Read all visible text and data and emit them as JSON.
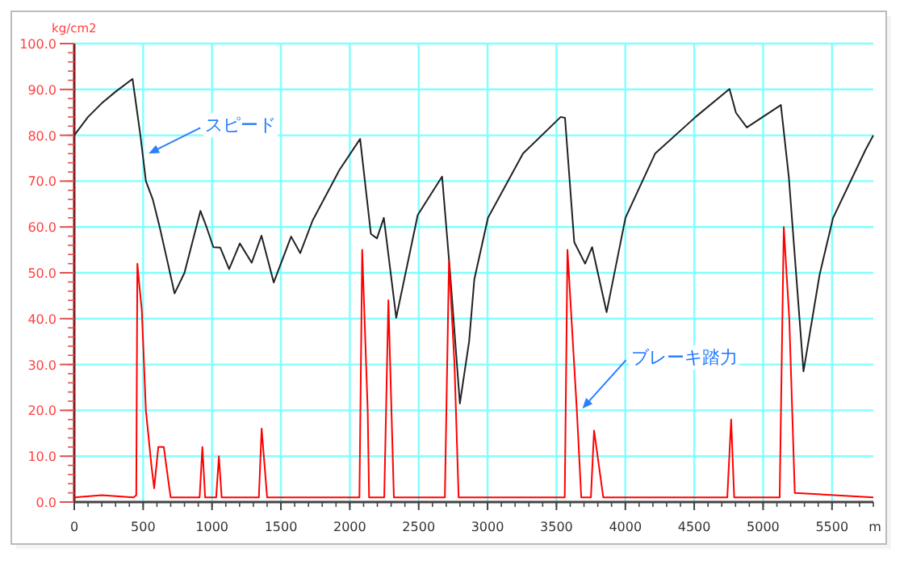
{
  "chart_data": {
    "type": "line",
    "xlabel": "m",
    "ylabel": "kg/cm2",
    "xlim": [
      0,
      5800
    ],
    "ylim": [
      0,
      100
    ],
    "xticks": [
      0,
      500,
      1000,
      1500,
      2000,
      2500,
      3000,
      3500,
      4000,
      4500,
      5000,
      5500
    ],
    "yticks": [
      {
        "value": 0,
        "label": "0.0"
      },
      {
        "value": 10,
        "label": "10.0"
      },
      {
        "value": 20,
        "label": "20.0"
      },
      {
        "value": 30,
        "label": "30.0"
      },
      {
        "value": 40,
        "label": "40.0"
      },
      {
        "value": 50,
        "label": "50.0"
      },
      {
        "value": 60,
        "label": "60.0"
      },
      {
        "value": 70,
        "label": "70.0"
      },
      {
        "value": 80,
        "label": "80.0"
      },
      {
        "value": 90,
        "label": "90.0"
      },
      {
        "value": 100,
        "label": "100.0"
      }
    ],
    "grid": true,
    "marker": "none",
    "line_style": "solid",
    "series": [
      {
        "color": "#222222",
        "x": [
          0,
          100,
          200,
          300,
          423,
          480,
          520,
          570,
          620,
          680,
          728,
          800,
          916,
          960,
          1010,
          1060,
          1124,
          1202,
          1288,
          1359,
          1448,
          1574,
          1640,
          1730,
          1926,
          2075,
          2153,
          2197,
          2247,
          2337,
          2493,
          2670,
          2728,
          2799,
          2866,
          2904,
          3003,
          3257,
          3531,
          3562,
          3629,
          3708,
          3759,
          3864,
          4001,
          4216,
          4510,
          4756,
          4803,
          4882,
          5129,
          5187,
          5293,
          5410,
          5508,
          5743,
          5800
        ],
        "values": [
          80,
          84,
          87,
          89.5,
          92.3,
          80,
          70,
          66,
          60,
          52,
          45.5,
          50,
          63.5,
          60,
          55.6,
          55.5,
          50.8,
          56.4,
          52.2,
          58.1,
          47.9,
          57.9,
          54.3,
          61.4,
          72.5,
          79.2,
          58.5,
          57.5,
          62,
          40.2,
          62.6,
          71,
          50,
          21.5,
          35,
          48.6,
          62,
          76,
          84,
          83.8,
          56.7,
          52,
          55.6,
          41.4,
          62,
          76,
          84,
          90.1,
          84.9,
          81.7,
          86.6,
          70.8,
          28.5,
          49.6,
          62,
          76.8,
          80
        ]
      },
      {
        "color": "#ff0000",
        "x": [
          0,
          200,
          430,
          450,
          458,
          470,
          490,
          520,
          560,
          580,
          610,
          650,
          690,
          700,
          910,
          930,
          950,
          1030,
          1050,
          1070,
          1340,
          1360,
          1400,
          2070,
          2090,
          2130,
          2140,
          2250,
          2280,
          2320,
          2690,
          2720,
          2760,
          2790,
          3560,
          3580,
          3648,
          3680,
          3750,
          3773,
          3840,
          4740,
          4768,
          4790,
          5120,
          5150,
          5190,
          5230,
          5800
        ],
        "values": [
          1,
          1.5,
          1,
          1.5,
          52,
          48,
          42,
          20,
          8,
          3,
          12,
          12,
          3,
          1,
          1,
          12,
          1,
          1,
          10,
          1,
          1,
          16,
          1,
          1,
          55,
          20,
          1,
          1,
          44,
          1,
          1,
          52.5,
          30,
          1,
          1,
          55,
          20,
          1,
          1,
          15.6,
          1,
          1,
          18,
          1,
          1,
          60,
          40,
          2,
          1
        ]
      }
    ],
    "annotations": [
      {
        "text": "スピード",
        "x": 540,
        "y": 76
      },
      {
        "text": "ブレーキ踏力",
        "x": 3688,
        "y": 20.4
      }
    ]
  }
}
